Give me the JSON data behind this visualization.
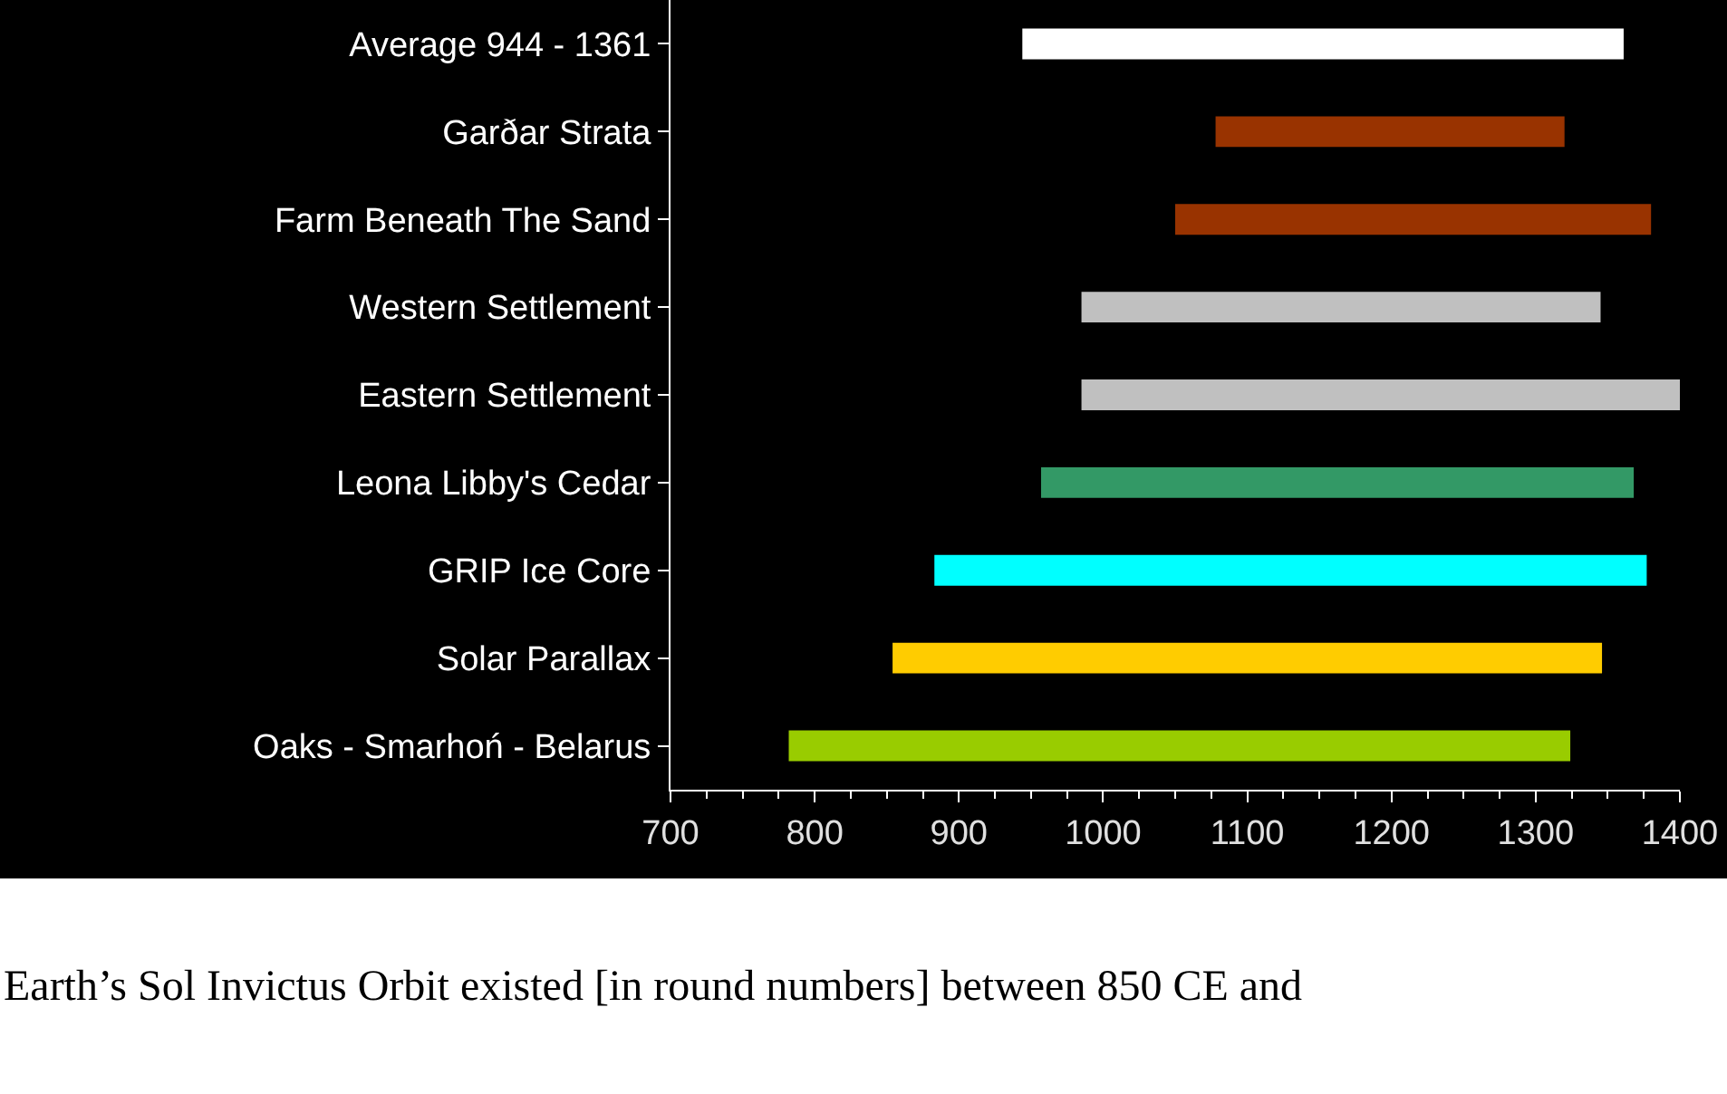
{
  "chart_data": {
    "type": "bar",
    "orientation": "horizontal",
    "categories": [
      "Average 944 - 1361",
      "Garðar Strata",
      "Farm Beneath The Sand",
      "Western Settlement",
      "Eastern Settlement",
      "Leona Libby's Cedar",
      "GRIP Ice Core",
      "Solar Parallax",
      "Oaks - Smarhoń - Belarus"
    ],
    "base": [
      944,
      1078,
      1050,
      985,
      985,
      957,
      883,
      854,
      782
    ],
    "values": [
      417,
      242,
      330,
      360,
      415,
      411,
      494,
      492,
      542
    ],
    "colors": [
      "#ffffff",
      "#993300",
      "#993300",
      "#c0c0c0",
      "#c0c0c0",
      "#339966",
      "#00ffff",
      "#ffcc00",
      "#99cc00"
    ],
    "xlim": [
      700,
      1400
    ],
    "xticks": [
      700,
      800,
      900,
      1000,
      1100,
      1200,
      1300,
      1400
    ],
    "grid": false,
    "legend": false,
    "annotations": [
      "Earth’s Sol Invictus Orbit existed [in round numbers] between 850 CE and"
    ]
  }
}
